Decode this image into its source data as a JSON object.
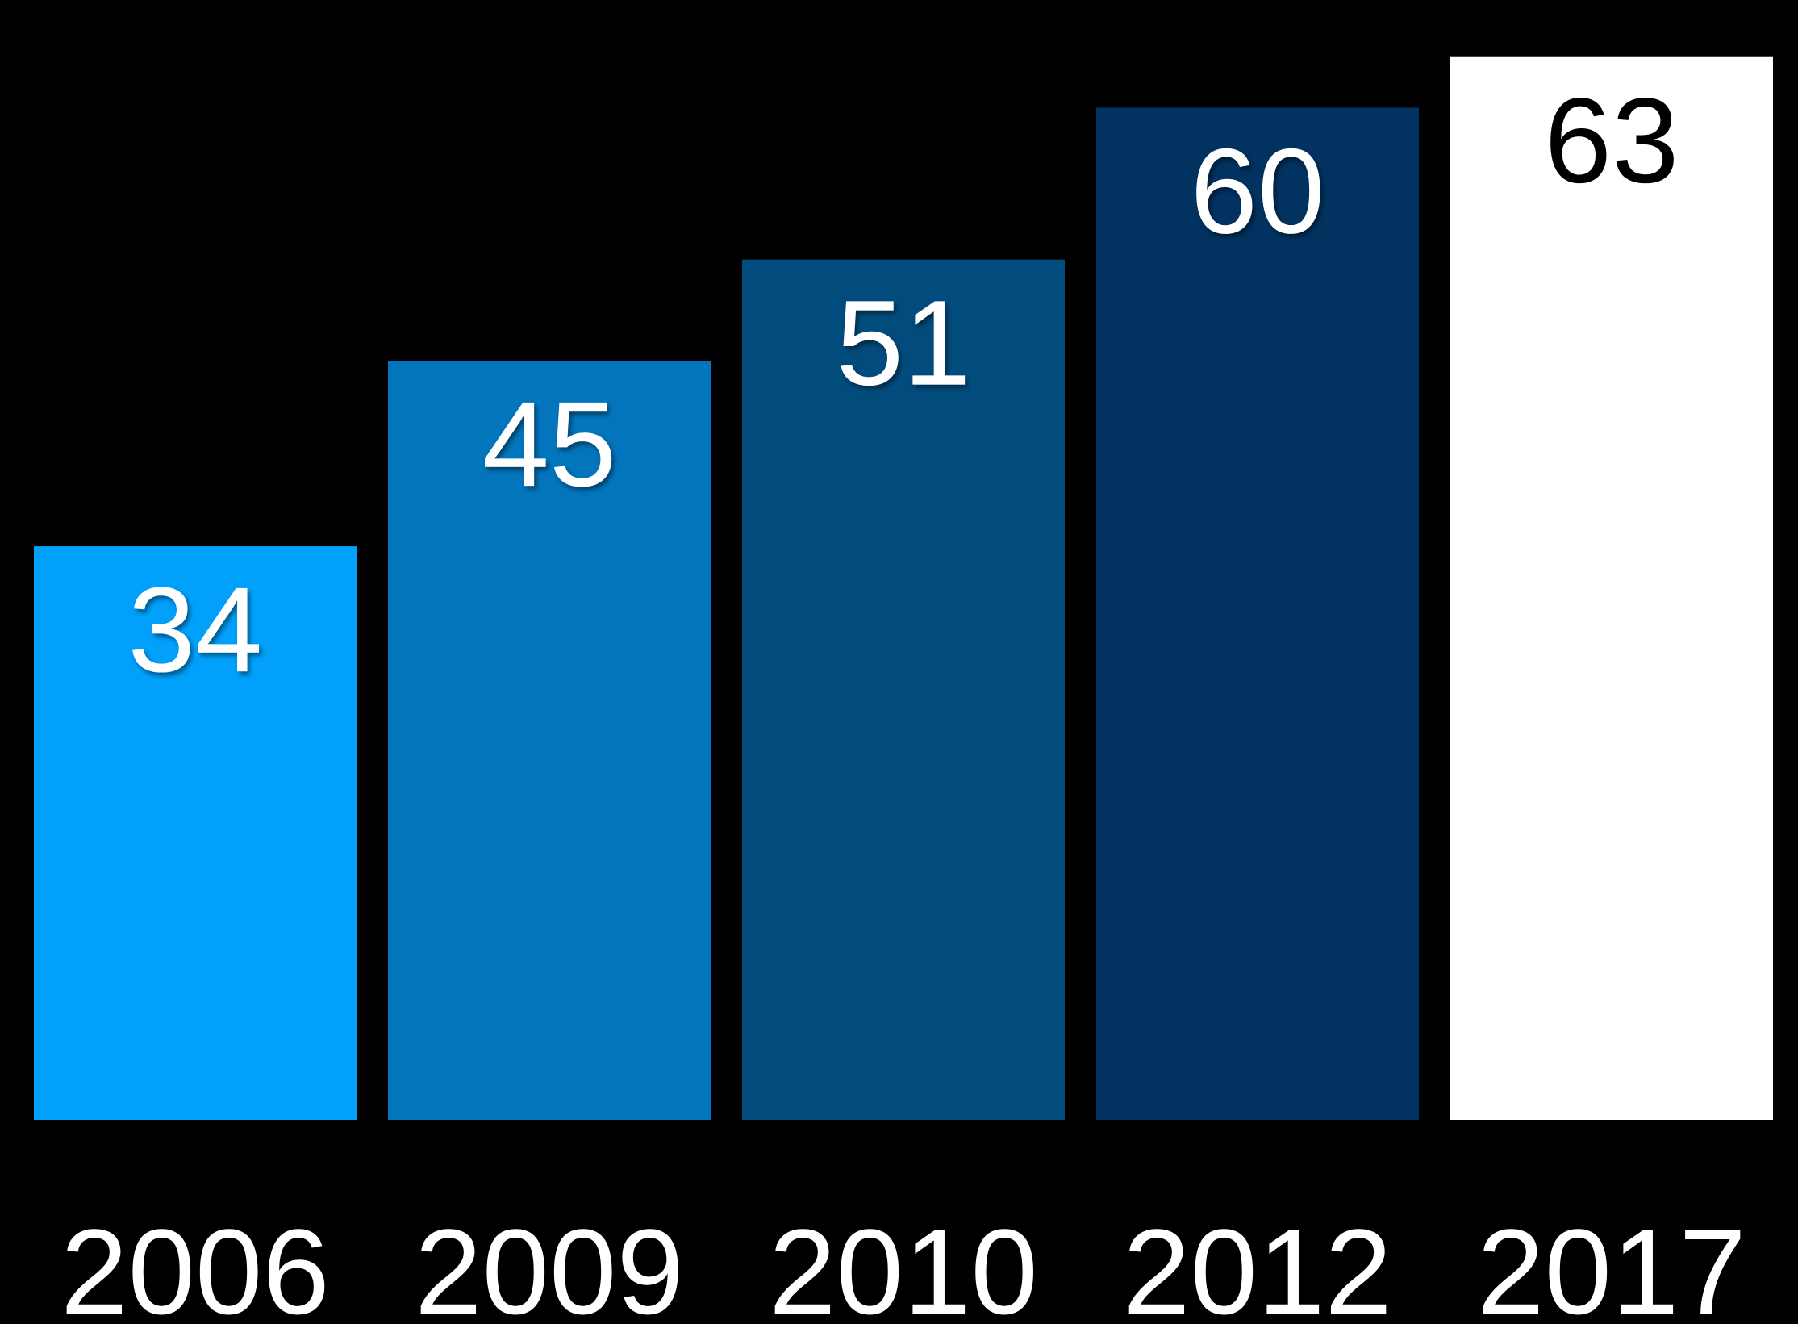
{
  "chart_data": {
    "type": "bar",
    "categories": [
      "2006",
      "2009",
      "2010",
      "2012",
      "2017"
    ],
    "values": [
      34,
      45,
      51,
      60,
      63
    ],
    "data_labels": [
      "34",
      "45",
      "51",
      "60",
      "63"
    ],
    "title": "",
    "xlabel": "",
    "ylabel": "",
    "ylim": [
      0,
      66
    ],
    "grid": false,
    "legend": "none",
    "background": "#000000",
    "bar_colors": [
      "#00a0fb",
      "#0275bd",
      "#014c7d",
      "#013260",
      "#ffffff"
    ],
    "label_colors": [
      "#ffffff",
      "#ffffff",
      "#ffffff",
      "#ffffff",
      "#000000"
    ],
    "tick_color": "#ffffff"
  }
}
